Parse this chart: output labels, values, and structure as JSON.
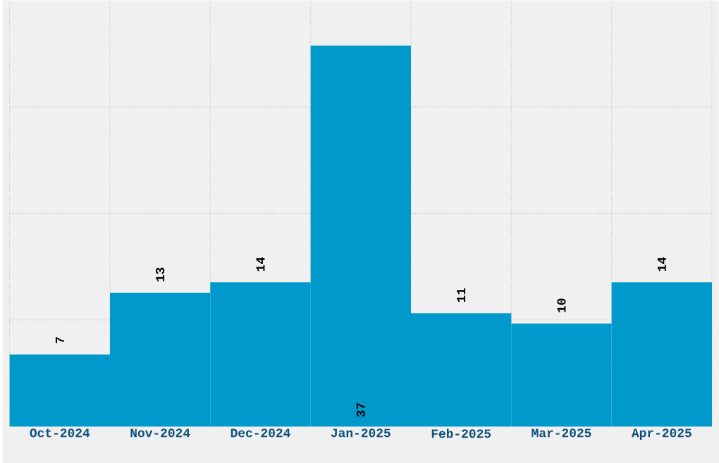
{
  "chart_data": {
    "type": "bar",
    "categories": [
      "Oct-2024",
      "Nov-2024",
      "Dec-2024",
      "Jan-2025",
      "Feb-2025",
      "Mar-2025",
      "Apr-2025"
    ],
    "values": [
      7,
      13,
      14,
      37,
      11,
      10,
      14
    ],
    "color": "#0099cc",
    "ylim": [
      0,
      41.4
    ],
    "yticks": [
      {
        "value": 10.35,
        "label": null
      },
      {
        "value": 20.7,
        "label": null
      },
      {
        "value": 31.05,
        "label": null
      }
    ],
    "tick_labels": "x",
    "grid": true,
    "data_labels": true
  }
}
